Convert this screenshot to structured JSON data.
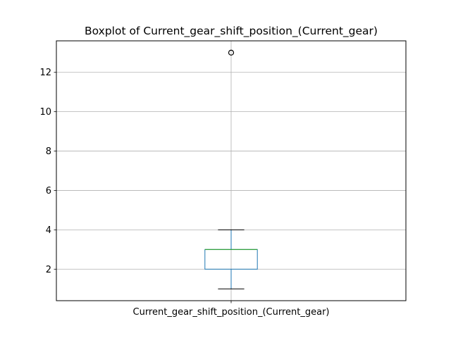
{
  "chart_data": {
    "type": "box",
    "title": "Boxplot of Current_gear_shift_position_(Current_gear)",
    "categories": [
      "Current_gear_shift_position_(Current_gear)"
    ],
    "boxes": [
      {
        "name": "Current_gear_shift_position_(Current_gear)",
        "whisker_low": 1,
        "q1": 2,
        "median": 3,
        "q3": 3,
        "whisker_high": 4,
        "outliers": [
          13
        ]
      }
    ],
    "ylim": [
      0.4,
      13.6
    ],
    "yticks": [
      2,
      4,
      6,
      8,
      10,
      12
    ],
    "grid": true,
    "colors": {
      "box": "#1f77b4",
      "median": "#2ca02c",
      "whisker": "#1f77b4",
      "cap": "#000000",
      "outlier": "#000000",
      "grid": "#b0b0b0"
    }
  }
}
